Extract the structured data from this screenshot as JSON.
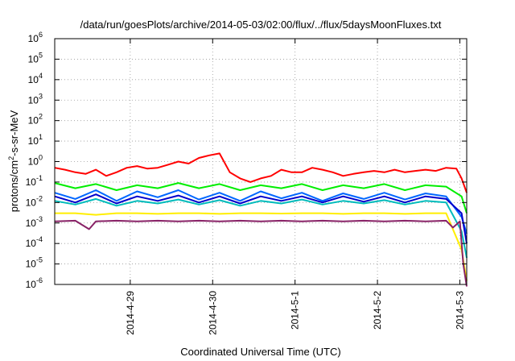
{
  "chart_data": {
    "type": "line",
    "title": "/data/run/goesPlots/archive/2014-05-03/02:00/flux/../flux/5daysMoonFluxes.txt",
    "xlabel": "Coordinated Universal Time (UTC)",
    "ylabel": {
      "base": "protons/cm",
      "sup": "2",
      "rest": "-s-sr-MeV"
    },
    "y_scale": "log",
    "ylim": [
      1e-06,
      1000000.0
    ],
    "y_ticks": [
      {
        "value": 1e-06,
        "base": "10",
        "exp": "-6"
      },
      {
        "value": 1e-05,
        "base": "10",
        "exp": "-5"
      },
      {
        "value": 0.0001,
        "base": "10",
        "exp": "-4"
      },
      {
        "value": 0.001,
        "base": "10",
        "exp": "-3"
      },
      {
        "value": 0.01,
        "base": "10",
        "exp": "-2"
      },
      {
        "value": 0.1,
        "base": "10",
        "exp": "-1"
      },
      {
        "value": 1.0,
        "base": "10",
        "exp": "0"
      },
      {
        "value": 10.0,
        "base": "10",
        "exp": "1"
      },
      {
        "value": 100.0,
        "base": "10",
        "exp": "2"
      },
      {
        "value": 1000.0,
        "base": "10",
        "exp": "3"
      },
      {
        "value": 10000.0,
        "base": "10",
        "exp": "4"
      },
      {
        "value": 100000.0,
        "base": "10",
        "exp": "5"
      },
      {
        "value": 1000000.0,
        "base": "10",
        "exp": "6"
      }
    ],
    "x_type": "date",
    "xlim": [
      "2014-04-28T02:00",
      "2014-05-03T02:00"
    ],
    "x_ticks": [
      {
        "value": "2014-04-29T00:00",
        "label": "2014-4-29"
      },
      {
        "value": "2014-04-30T00:00",
        "label": "2014-4-30"
      },
      {
        "value": "2014-05-01T00:00",
        "label": "2014-5-1"
      },
      {
        "value": "2014-05-02T00:00",
        "label": "2014-5-2"
      },
      {
        "value": "2014-05-03T00:00",
        "label": "2014-5-3"
      }
    ],
    "grid": true,
    "legend": "none",
    "series": [
      {
        "color": "#ff0000",
        "x": [
          "2014-04-28T02:00",
          "2014-04-28T05:00",
          "2014-04-28T08:00",
          "2014-04-28T11:00",
          "2014-04-28T14:00",
          "2014-04-28T17:00",
          "2014-04-28T20:00",
          "2014-04-28T23:00",
          "2014-04-29T02:00",
          "2014-04-29T05:00",
          "2014-04-29T08:00",
          "2014-04-29T11:00",
          "2014-04-29T14:00",
          "2014-04-29T17:00",
          "2014-04-29T20:00",
          "2014-04-29T23:00",
          "2014-04-30T02:00",
          "2014-04-30T05:00",
          "2014-04-30T08:00",
          "2014-04-30T11:00",
          "2014-04-30T14:00",
          "2014-04-30T17:00",
          "2014-04-30T20:00",
          "2014-04-30T23:00",
          "2014-05-01T02:00",
          "2014-05-01T05:00",
          "2014-05-01T08:00",
          "2014-05-01T11:00",
          "2014-05-01T14:00",
          "2014-05-01T17:00",
          "2014-05-01T20:00",
          "2014-05-01T23:00",
          "2014-05-02T02:00",
          "2014-05-02T05:00",
          "2014-05-02T08:00",
          "2014-05-02T11:00",
          "2014-05-02T14:00",
          "2014-05-02T17:00",
          "2014-05-02T20:00",
          "2014-05-02T23:00",
          "2014-05-03T00:30",
          "2014-05-03T02:00"
        ],
        "values": [
          0.5,
          0.4,
          0.3,
          0.25,
          0.4,
          0.2,
          0.3,
          0.5,
          0.6,
          0.45,
          0.5,
          0.7,
          1.0,
          0.8,
          1.5,
          2.0,
          2.5,
          0.3,
          0.15,
          0.1,
          0.15,
          0.2,
          0.4,
          0.3,
          0.3,
          0.5,
          0.4,
          0.3,
          0.2,
          0.25,
          0.3,
          0.35,
          0.3,
          0.4,
          0.3,
          0.35,
          0.4,
          0.35,
          0.5,
          0.45,
          0.15,
          0.03
        ]
      },
      {
        "color": "#00ee00",
        "x": [
          "2014-04-28T02:00",
          "2014-04-28T08:00",
          "2014-04-28T14:00",
          "2014-04-28T20:00",
          "2014-04-29T02:00",
          "2014-04-29T08:00",
          "2014-04-29T14:00",
          "2014-04-29T20:00",
          "2014-04-30T02:00",
          "2014-04-30T08:00",
          "2014-04-30T14:00",
          "2014-04-30T20:00",
          "2014-05-01T02:00",
          "2014-05-01T08:00",
          "2014-05-01T14:00",
          "2014-05-01T20:00",
          "2014-05-02T02:00",
          "2014-05-02T08:00",
          "2014-05-02T14:00",
          "2014-05-02T20:00",
          "2014-05-03T00:30",
          "2014-05-03T02:00"
        ],
        "values": [
          0.09,
          0.05,
          0.08,
          0.04,
          0.07,
          0.05,
          0.09,
          0.05,
          0.08,
          0.04,
          0.07,
          0.05,
          0.08,
          0.04,
          0.07,
          0.05,
          0.08,
          0.04,
          0.07,
          0.06,
          0.02,
          0.003
        ]
      },
      {
        "color": "#00bbbb",
        "x": [
          "2014-04-28T02:00",
          "2014-04-28T08:00",
          "2014-04-28T14:00",
          "2014-04-28T20:00",
          "2014-04-29T02:00",
          "2014-04-29T08:00",
          "2014-04-29T14:00",
          "2014-04-29T20:00",
          "2014-04-30T02:00",
          "2014-04-30T08:00",
          "2014-04-30T14:00",
          "2014-04-30T20:00",
          "2014-05-01T02:00",
          "2014-05-01T08:00",
          "2014-05-01T14:00",
          "2014-05-01T20:00",
          "2014-05-02T02:00",
          "2014-05-02T08:00",
          "2014-05-02T14:00",
          "2014-05-02T20:00",
          "2014-05-03T00:30",
          "2014-05-03T02:00"
        ],
        "values": [
          0.012,
          0.008,
          0.015,
          0.007,
          0.012,
          0.009,
          0.014,
          0.008,
          0.013,
          0.007,
          0.012,
          0.009,
          0.014,
          0.008,
          0.012,
          0.009,
          0.013,
          0.008,
          0.012,
          0.01,
          0.0004,
          2e-05
        ]
      },
      {
        "color": "#0066ff",
        "x": [
          "2014-04-28T02:00",
          "2014-04-28T08:00",
          "2014-04-28T14:00",
          "2014-04-28T20:00",
          "2014-04-29T02:00",
          "2014-04-29T08:00",
          "2014-04-29T14:00",
          "2014-04-29T20:00",
          "2014-04-30T02:00",
          "2014-04-30T08:00",
          "2014-04-30T14:00",
          "2014-04-30T20:00",
          "2014-05-01T02:00",
          "2014-05-01T08:00",
          "2014-05-01T14:00",
          "2014-05-01T20:00",
          "2014-05-02T02:00",
          "2014-05-02T08:00",
          "2014-05-02T14:00",
          "2014-05-02T20:00",
          "2014-05-03T00:30",
          "2014-05-03T02:00"
        ],
        "values": [
          0.03,
          0.015,
          0.04,
          0.012,
          0.035,
          0.018,
          0.04,
          0.014,
          0.03,
          0.012,
          0.035,
          0.016,
          0.03,
          0.012,
          0.028,
          0.015,
          0.03,
          0.014,
          0.028,
          0.02,
          0.002,
          0.0003
        ]
      },
      {
        "color": "#0000cc",
        "x": [
          "2014-04-28T02:00",
          "2014-04-28T08:00",
          "2014-04-28T14:00",
          "2014-04-28T20:00",
          "2014-04-29T02:00",
          "2014-04-29T08:00",
          "2014-04-29T14:00",
          "2014-04-29T20:00",
          "2014-04-30T02:00",
          "2014-04-30T08:00",
          "2014-04-30T14:00",
          "2014-04-30T20:00",
          "2014-05-01T02:00",
          "2014-05-01T08:00",
          "2014-05-01T14:00",
          "2014-05-01T20:00",
          "2014-05-02T02:00",
          "2014-05-02T08:00",
          "2014-05-02T14:00",
          "2014-05-02T20:00",
          "2014-05-03T00:30",
          "2014-05-03T02:00"
        ],
        "values": [
          0.02,
          0.01,
          0.025,
          0.009,
          0.02,
          0.012,
          0.022,
          0.01,
          0.02,
          0.009,
          0.02,
          0.012,
          0.02,
          0.01,
          0.02,
          0.011,
          0.02,
          0.01,
          0.02,
          0.015,
          0.003,
          0.0001
        ]
      },
      {
        "color": "#ffee00",
        "x": [
          "2014-04-28T02:00",
          "2014-04-28T08:00",
          "2014-04-28T14:00",
          "2014-04-28T20:00",
          "2014-04-29T02:00",
          "2014-04-29T08:00",
          "2014-04-29T14:00",
          "2014-04-29T20:00",
          "2014-04-30T02:00",
          "2014-04-30T08:00",
          "2014-04-30T14:00",
          "2014-04-30T20:00",
          "2014-05-01T02:00",
          "2014-05-01T08:00",
          "2014-05-01T14:00",
          "2014-05-01T20:00",
          "2014-05-02T02:00",
          "2014-05-02T08:00",
          "2014-05-02T14:00",
          "2014-05-02T20:00",
          "2014-05-03T00:30",
          "2014-05-03T02:00"
        ],
        "values": [
          0.003,
          0.003,
          0.0025,
          0.003,
          0.003,
          0.0028,
          0.003,
          0.003,
          0.0028,
          0.003,
          0.003,
          0.0029,
          0.003,
          0.003,
          0.0028,
          0.003,
          0.003,
          0.0028,
          0.003,
          0.003,
          5e-05,
          1.5e-06
        ]
      },
      {
        "color": "#882266",
        "x": [
          "2014-04-28T02:00",
          "2014-04-28T08:00",
          "2014-04-28T12:00",
          "2014-04-28T14:00",
          "2014-04-28T20:00",
          "2014-04-29T02:00",
          "2014-04-29T08:00",
          "2014-04-29T14:00",
          "2014-04-29T20:00",
          "2014-04-30T02:00",
          "2014-04-30T08:00",
          "2014-04-30T14:00",
          "2014-04-30T20:00",
          "2014-05-01T02:00",
          "2014-05-01T08:00",
          "2014-05-01T14:00",
          "2014-05-01T20:00",
          "2014-05-02T02:00",
          "2014-05-02T08:00",
          "2014-05-02T14:00",
          "2014-05-02T20:00",
          "2014-05-02T22:00",
          "2014-05-03T00:00",
          "2014-05-03T01:00",
          "2014-05-03T02:00"
        ],
        "values": [
          0.0012,
          0.0013,
          0.0005,
          0.0012,
          0.0013,
          0.0012,
          0.0013,
          0.0012,
          0.0013,
          0.0012,
          0.0013,
          0.0012,
          0.0013,
          0.0012,
          0.0013,
          0.0012,
          0.0013,
          0.0012,
          0.0013,
          0.0012,
          0.0013,
          0.0006,
          0.0012,
          1e-05,
          8e-07
        ]
      }
    ]
  }
}
